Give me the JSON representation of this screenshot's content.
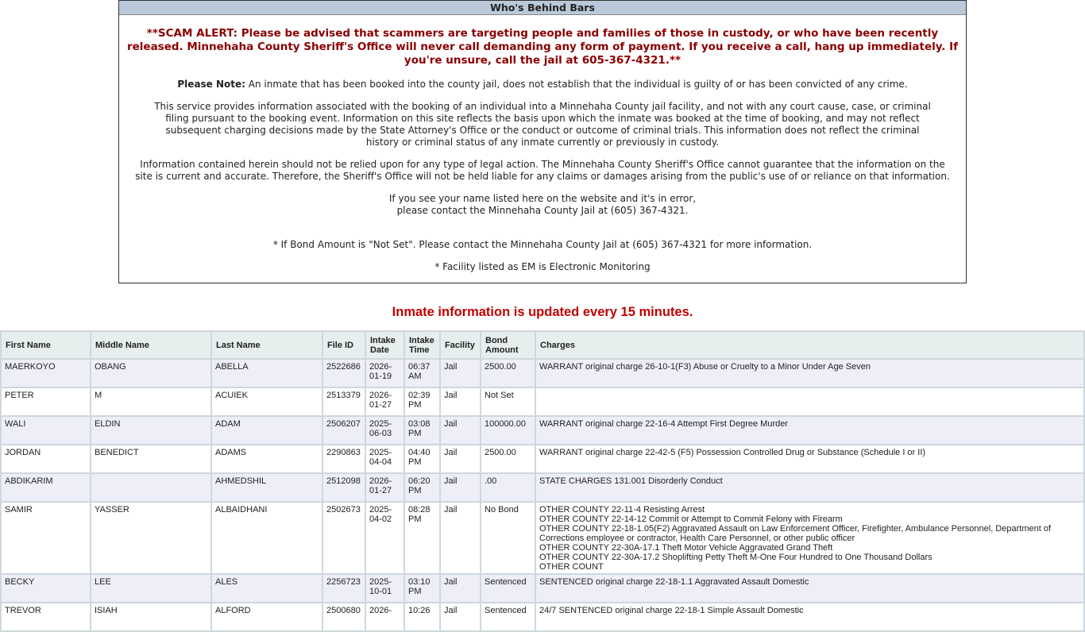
{
  "notice": {
    "title": "Who's Behind Bars",
    "scam_alert": "**SCAM ALERT: Please be advised that scammers are targeting people and families of those in custody, or who have been recently released. Minnehaha County Sheriff's Office will never call demanding any form of payment. If you receive a call, hang up immediately. If you're unsure, call the jail at 605-367-4321.**",
    "please_note_label": "Please Note:",
    "please_note": " An inmate that has been booked into the county jail, does not establish that the individual is guilty of or has been convicted of any crime.",
    "service_info": "This service provides information associated with the booking of an individual into a Minnehaha County jail facility, and not with any court cause, case, or criminal filing pursuant to the booking event. Information on this site reflects the basis upon which the inmate was booked at the time of booking, and may not reflect subsequent charging decisions made by the State Attorney's Office or the conduct or outcome of criminal trials. This information does not reflect the criminal history or criminal status of any inmate currently or previously in custody.",
    "legal": "Information contained herein should not be relied upon for any type of legal action. The Minnehaha County Sheriff's Office cannot guarantee that the information on the site is current and accurate. Therefore, the Sheriff's Office will not be held liable for any claims or damages arising from the public's use of or reliance on that information.",
    "error_line1": "If you see your name listed here on the website and it's in error,",
    "error_line2": "please contact the Minnehaha County Jail at (605) 367-4321.",
    "bond_note": "* If Bond Amount is \"Not Set\". Please contact the Minnehaha County Jail at (605) 367-4321 for more information.",
    "em_note": "* Facility listed as EM is Electronic Monitoring"
  },
  "update_notice": "Inmate information is updated every 15 minutes.",
  "table": {
    "headers": [
      "First Name",
      "Middle Name",
      "Last Name",
      "File ID",
      "Intake Date",
      "Intake Time",
      "Facility",
      "Bond Amount",
      "Charges"
    ],
    "rows": [
      {
        "first": "MAERKOYO",
        "middle": "OBANG",
        "last": "ABELLA",
        "file_id": "2522686",
        "date": "2026-01-19",
        "time": "06:37 AM",
        "facility": "Jail",
        "bond": "2500.00",
        "charges": [
          "WARRANT original charge 26-10-1(F3) Abuse or Cruelty to a Minor Under Age Seven"
        ]
      },
      {
        "first": "PETER",
        "middle": "M",
        "last": "ACUIEK",
        "file_id": "2513379",
        "date": "2026-01-27",
        "time": "02:39 PM",
        "facility": "Jail",
        "bond": "Not Set",
        "charges": []
      },
      {
        "first": "WALI",
        "middle": "ELDIN",
        "last": "ADAM",
        "file_id": "2506207",
        "date": "2025-06-03",
        "time": "03:08 PM",
        "facility": "Jail",
        "bond": "100000.00",
        "charges": [
          "WARRANT original charge 22-16-4 Attempt First Degree Murder"
        ]
      },
      {
        "first": "JORDAN",
        "middle": "BENEDICT",
        "last": "ADAMS",
        "file_id": "2290863",
        "date": "2025-04-04",
        "time": "04:40 PM",
        "facility": "Jail",
        "bond": "2500.00",
        "charges": [
          "WARRANT original charge 22-42-5 (F5) Possession Controlled Drug or Substance (Schedule I or II)"
        ]
      },
      {
        "first": "ABDIKARIM",
        "middle": "",
        "last": "AHMEDSHIL",
        "file_id": "2512098",
        "date": "2026-01-27",
        "time": "06:20 PM",
        "facility": "Jail",
        "bond": ".00",
        "charges": [
          "STATE CHARGES 131.001 Disorderly Conduct"
        ]
      },
      {
        "first": "SAMIR",
        "middle": "YASSER",
        "last": "ALBAIDHANI",
        "file_id": "2502673",
        "date": "2025-04-02",
        "time": "08:28 PM",
        "facility": "Jail",
        "bond": "No Bond",
        "charges": [
          "OTHER COUNTY 22-11-4 Resisting Arrest",
          "OTHER COUNTY 22-14-12 Commit or Attempt to Commit Felony with Firearm",
          "OTHER COUNTY 22-18-1.05(F2) Aggravated Assault on Law Enforcement Officer, Firefighter, Ambulance Personnel, Department of Corrections employee or contractor, Health Care Personnel, or other public officer",
          "OTHER COUNTY 22-30A-17.1 Theft Motor Vehicle Aggravated Grand Theft",
          "OTHER COUNTY 22-30A-17.2 Shoplifting Petty Theft M-One Four Hundred to One Thousand Dollars",
          "OTHER COUNT"
        ]
      },
      {
        "first": "BECKY",
        "middle": "LEE",
        "last": "ALES",
        "file_id": "2256723",
        "date": "2025-10-01",
        "time": "03:10 PM",
        "facility": "Jail",
        "bond": "Sentenced",
        "charges": [
          "SENTENCED original charge 22-18-1.1 Aggravated Assault Domestic"
        ]
      },
      {
        "first": "TREVOR",
        "middle": "ISIAH",
        "last": "ALFORD",
        "file_id": "2500680",
        "date": "2026-",
        "time": "10:26",
        "facility": "Jail",
        "bond": "Sentenced",
        "charges": [
          "24/7 SENTENCED original charge 22-18-1 Simple Assault Domestic"
        ]
      }
    ]
  }
}
